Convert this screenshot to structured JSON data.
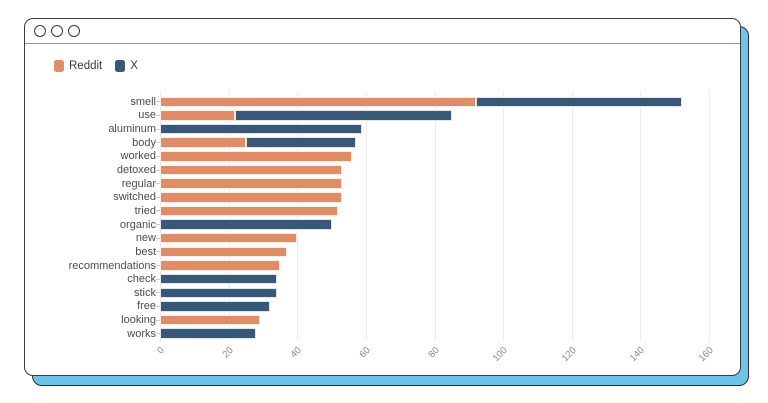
{
  "window": {
    "controls": [
      "control-1",
      "control-2",
      "control-3"
    ]
  },
  "legend": {
    "items": [
      {
        "label": "Reddit",
        "color": "#e08c66"
      },
      {
        "label": "X",
        "color": "#395878"
      }
    ]
  },
  "colors": {
    "reddit_orange": "#e08c66",
    "x_navy": "#395878",
    "background_card_blue": "#6cc5e9",
    "gridline": "#ececec",
    "window_border": "#3a3a3a"
  },
  "chart_data": {
    "type": "bar",
    "orientation": "horizontal",
    "stacked": true,
    "title": "",
    "xlabel": "",
    "ylabel": "",
    "grid": true,
    "legend_position": "top-left",
    "xlim": [
      0,
      160
    ],
    "xticks": [
      0,
      20,
      40,
      60,
      80,
      100,
      120,
      140,
      160
    ],
    "categories": [
      "smell",
      "use",
      "aluminum",
      "body",
      "worked",
      "detoxed",
      "regular",
      "switched",
      "tried",
      "organic",
      "new",
      "best",
      "recommendations",
      "check",
      "stick",
      "free",
      "looking",
      "works"
    ],
    "series": [
      {
        "name": "Reddit",
        "color": "#e08c66",
        "values": [
          92,
          22,
          0,
          25,
          56,
          53,
          53,
          53,
          52,
          0,
          40,
          37,
          35,
          0,
          0,
          0,
          29,
          0
        ]
      },
      {
        "name": "X",
        "color": "#395878",
        "values": [
          60,
          63,
          59,
          32,
          0,
          0,
          0,
          0,
          0,
          50,
          0,
          0,
          0,
          34,
          34,
          32,
          0,
          28
        ]
      }
    ],
    "totals": [
      152,
      85,
      59,
      57,
      56,
      53,
      53,
      53,
      52,
      50,
      40,
      37,
      35,
      34,
      34,
      32,
      29,
      28
    ]
  }
}
